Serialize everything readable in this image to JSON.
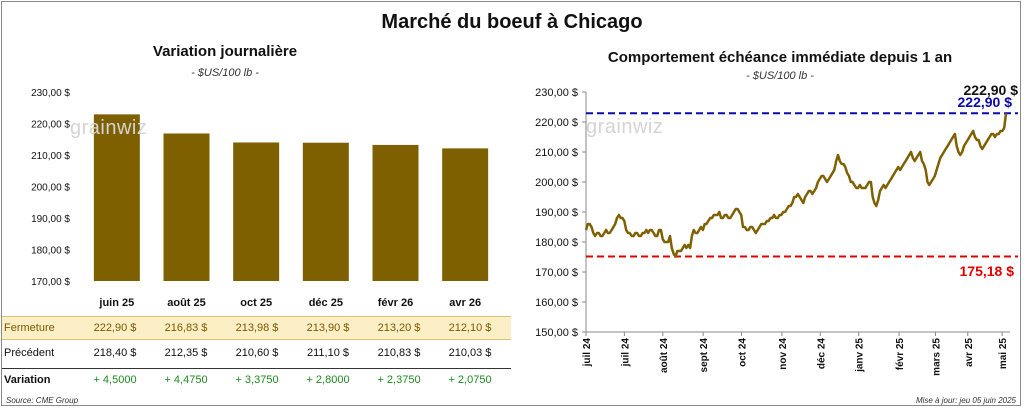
{
  "title": "Marché du boeuf à Chicago",
  "left": {
    "subtitle": "Variation journalière",
    "unit": "- $US/100 lb -",
    "logo": "grainwiz",
    "chart_data": {
      "type": "bar",
      "categories": [
        "juin 25",
        "août 25",
        "oct 25",
        "déc 25",
        "févr 26",
        "avr 26"
      ],
      "values": [
        222.9,
        216.83,
        213.98,
        213.9,
        213.2,
        212.1
      ],
      "ylim": [
        170,
        230
      ],
      "yticks": [
        "170,00 $",
        "180,00 $",
        "190,00 $",
        "200,00 $",
        "210,00 $",
        "220,00 $",
        "230,00 $"
      ],
      "ytick_values": [
        170,
        180,
        190,
        200,
        210,
        220,
        230
      ],
      "bar_color": "#7f6000"
    },
    "table": {
      "rows": [
        {
          "label": "Fermeture",
          "values": [
            "222,90  $",
            "216,83  $",
            "213,98  $",
            "213,90  $",
            "213,20  $",
            "212,10  $"
          ]
        },
        {
          "label": "Précédent",
          "values": [
            "218,40  $",
            "212,35  $",
            "210,60  $",
            "211,10  $",
            "210,83  $",
            "210,03  $"
          ]
        },
        {
          "label": "Variation",
          "values": [
            "+ 4,5000",
            "+ 4,4750",
            "+ 3,3750",
            "+ 2,8000",
            "+ 2,3750",
            "+ 2,0750"
          ]
        }
      ]
    }
  },
  "right": {
    "subtitle": "Comportement échéance immédiate depuis 1 an",
    "unit": "- $US/100 lb -",
    "logo": "grainwiz",
    "chart_data": {
      "type": "line",
      "ylim": [
        150,
        230
      ],
      "yticks": [
        "150,00 $",
        "160,00 $",
        "170,00 $",
        "180,00 $",
        "190,00 $",
        "200,00 $",
        "210,00 $",
        "220,00 $",
        "230,00 $"
      ],
      "ytick_values": [
        150,
        160,
        170,
        180,
        190,
        200,
        210,
        220,
        230
      ],
      "xlabels": [
        "juil 24",
        "juil 24",
        "août 24",
        "sept 24",
        "oct 24",
        "nov 24",
        "déc 24",
        "janv 25",
        "févr 25",
        "mars 25",
        "avr 25",
        "mai 25"
      ],
      "xlabel_positions": [
        0,
        0.095,
        0.19,
        0.29,
        0.385,
        0.485,
        0.58,
        0.675,
        0.775,
        0.865,
        0.945,
        1.03
      ],
      "line_color": "#7f6000",
      "last_value_label": "222,90 $",
      "max_line": {
        "value": 222.9,
        "label": "222,90 $",
        "color": "#0a0aaa"
      },
      "min_line": {
        "value": 175.18,
        "label": "175,18 $",
        "color": "#e00000"
      },
      "values": [
        184,
        186,
        186,
        185,
        183,
        182,
        183,
        183,
        182,
        182,
        183,
        184,
        183,
        183,
        184,
        185,
        186,
        188,
        189,
        188,
        188,
        187,
        184,
        183,
        183,
        182,
        182,
        183,
        183,
        182,
        182,
        183,
        183,
        184,
        183,
        184,
        184,
        183,
        182,
        182,
        184,
        184,
        181,
        180,
        180,
        180,
        182,
        178,
        176,
        175.18,
        177,
        177,
        177,
        178,
        179,
        178,
        179,
        178,
        182,
        184,
        183,
        183,
        184,
        185,
        184,
        186,
        186,
        187,
        188,
        188,
        189,
        189,
        189,
        190,
        188,
        188,
        189,
        189,
        188,
        188,
        189,
        190,
        191,
        191,
        190,
        189,
        185,
        185,
        184,
        184,
        185,
        185,
        184,
        183,
        184,
        185,
        186,
        186,
        186,
        187,
        187,
        188,
        188,
        189,
        188,
        188,
        189,
        189,
        190,
        190,
        191,
        192,
        192,
        193,
        195,
        195,
        196,
        195,
        194,
        193,
        195,
        196,
        197,
        197,
        196,
        197,
        198,
        200,
        201,
        202,
        202,
        201,
        200,
        201,
        202,
        203,
        204,
        207,
        209,
        207,
        206,
        206,
        205,
        203,
        202,
        200,
        200,
        199,
        198,
        198,
        199,
        198,
        198,
        198,
        199,
        200,
        200,
        195,
        193,
        192,
        194,
        197,
        198,
        199,
        198,
        199,
        200,
        201,
        202,
        203,
        204,
        205,
        204,
        205,
        206,
        207,
        208,
        209,
        210,
        208,
        207,
        208,
        209,
        210,
        207,
        206,
        204,
        200,
        199,
        200,
        201,
        202,
        204,
        206,
        208,
        209,
        210,
        211,
        212,
        213,
        214,
        215,
        216,
        212,
        210,
        209,
        210,
        212,
        213,
        214,
        215,
        216,
        217,
        215,
        214,
        214,
        212,
        211,
        212,
        213,
        214,
        215,
        216,
        216,
        215,
        216,
        216,
        217,
        217,
        218,
        222.9
      ]
    }
  },
  "footer": {
    "source": "Source: CME Group",
    "updated": "Mise à jour: jeu 05 juin 2025"
  }
}
